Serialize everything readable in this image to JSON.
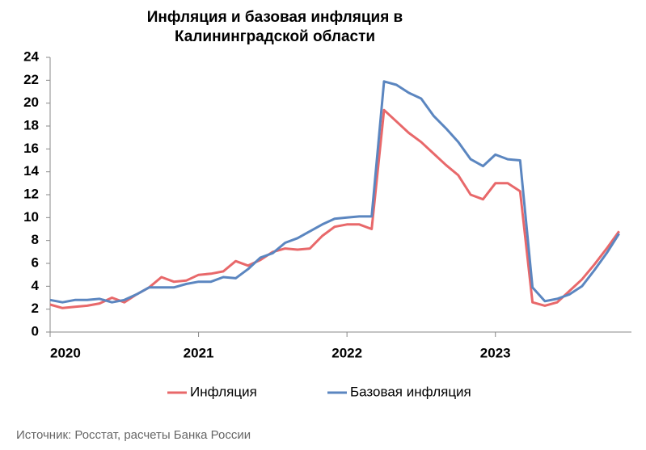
{
  "chart_data": {
    "type": "line",
    "title": "Инфляция и базовая инфляция в Калининградской области",
    "source": "Источник: Росстат, расчеты Банка России",
    "x": [
      0,
      1,
      2,
      3,
      4,
      5,
      6,
      7,
      8,
      9,
      10,
      11,
      12,
      13,
      14,
      15,
      16,
      17,
      18,
      19,
      20,
      21,
      22,
      23,
      24,
      25,
      26,
      27,
      28,
      29,
      30,
      31,
      32,
      33,
      34,
      35,
      36,
      37,
      38,
      39,
      40,
      41,
      42,
      43,
      44,
      45,
      46
    ],
    "series": [
      {
        "name": "Инфляция",
        "color": "#e8686a",
        "values": [
          2.4,
          2.1,
          2.2,
          2.3,
          2.5,
          3.0,
          2.6,
          3.3,
          3.9,
          4.8,
          4.4,
          4.5,
          5.0,
          5.1,
          5.3,
          6.2,
          5.8,
          6.3,
          7.0,
          7.3,
          7.2,
          7.3,
          8.4,
          9.2,
          9.4,
          9.4,
          9.0,
          19.4,
          18.4,
          17.4,
          16.6,
          15.6,
          14.6,
          13.7,
          12.0,
          11.6,
          13.0,
          13.0,
          12.3,
          2.6,
          2.3,
          2.6,
          3.6,
          4.6,
          5.9,
          7.3,
          8.8
        ]
      },
      {
        "name": "Базовая инфляция",
        "color": "#5b86c0",
        "values": [
          2.8,
          2.6,
          2.8,
          2.8,
          2.9,
          2.6,
          2.8,
          3.3,
          3.9,
          3.9,
          3.9,
          4.2,
          4.4,
          4.4,
          4.8,
          4.7,
          5.5,
          6.5,
          6.9,
          7.8,
          8.2,
          8.8,
          9.4,
          9.9,
          10.0,
          10.1,
          10.1,
          21.9,
          21.6,
          20.9,
          20.4,
          18.9,
          17.8,
          16.6,
          15.1,
          14.5,
          15.5,
          15.1,
          15.0,
          3.9,
          2.7,
          2.9,
          3.3,
          4.0,
          5.4,
          6.9,
          8.6
        ]
      }
    ],
    "xlim": [
      0,
      47
    ],
    "xticks": [
      {
        "value": 0,
        "label": "2020"
      },
      {
        "value": 12,
        "label": "2021"
      },
      {
        "value": 24,
        "label": "2022"
      },
      {
        "value": 36,
        "label": "2023"
      }
    ],
    "ylim": [
      0,
      24
    ],
    "yticks": [
      0,
      2,
      4,
      6,
      8,
      10,
      12,
      14,
      16,
      18,
      20,
      22,
      24
    ],
    "grid": false,
    "legend": "bottom"
  }
}
